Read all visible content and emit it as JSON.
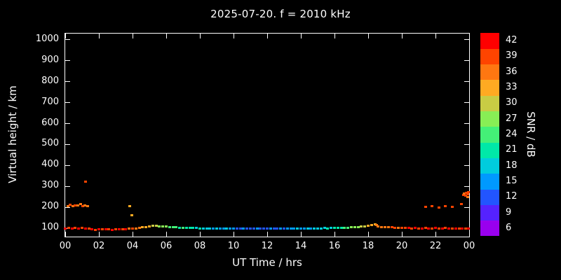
{
  "title": "2025-07-20. f = 2010 kHz",
  "colors": {
    "background": "#000000",
    "foreground": "#ffffff"
  },
  "axes": {
    "xlabel": "UT Time / hrs",
    "ylabel": "Virtual height / km",
    "x_ticks": [
      {
        "v": 0,
        "label": "00"
      },
      {
        "v": 2,
        "label": "02"
      },
      {
        "v": 4,
        "label": "04"
      },
      {
        "v": 6,
        "label": "06"
      },
      {
        "v": 8,
        "label": "08"
      },
      {
        "v": 10,
        "label": "10"
      },
      {
        "v": 12,
        "label": "12"
      },
      {
        "v": 14,
        "label": "14"
      },
      {
        "v": 16,
        "label": "16"
      },
      {
        "v": 18,
        "label": "18"
      },
      {
        "v": 20,
        "label": "20"
      },
      {
        "v": 22,
        "label": "22"
      },
      {
        "v": 24,
        "label": "00"
      }
    ],
    "y_ticks": [
      {
        "v": 100,
        "label": "100"
      },
      {
        "v": 200,
        "label": "200"
      },
      {
        "v": 300,
        "label": "300"
      },
      {
        "v": 400,
        "label": "400"
      },
      {
        "v": 500,
        "label": "500"
      },
      {
        "v": 600,
        "label": "600"
      },
      {
        "v": 700,
        "label": "700"
      },
      {
        "v": 800,
        "label": "800"
      },
      {
        "v": 900,
        "label": "900"
      },
      {
        "v": 1000,
        "label": "1000"
      }
    ]
  },
  "colorbar": {
    "label": "SNR / dB",
    "min": 4.5,
    "max": 43.5,
    "ticks": [
      6,
      9,
      12,
      15,
      18,
      21,
      24,
      27,
      30,
      33,
      36,
      39,
      42
    ],
    "stops": [
      {
        "v": 6,
        "c": "#9900ee"
      },
      {
        "v": 9,
        "c": "#5522ff"
      },
      {
        "v": 12,
        "c": "#2255ff"
      },
      {
        "v": 15,
        "c": "#0099ff"
      },
      {
        "v": 18,
        "c": "#00ccdd"
      },
      {
        "v": 21,
        "c": "#00e8a8"
      },
      {
        "v": 24,
        "c": "#44f077"
      },
      {
        "v": 27,
        "c": "#88ee55"
      },
      {
        "v": 30,
        "c": "#c8cc44"
      },
      {
        "v": 33,
        "c": "#ffaa22"
      },
      {
        "v": 36,
        "c": "#ff7711"
      },
      {
        "v": 39,
        "c": "#ff4400"
      },
      {
        "v": 42,
        "c": "#ff0000"
      }
    ]
  },
  "chart_data": {
    "type": "scatter",
    "title": "2025-07-20. f = 2010 kHz",
    "xlabel": "UT Time / hrs",
    "ylabel": "Virtual height / km",
    "colorbar_label": "SNR / dB",
    "xlim": [
      0,
      24
    ],
    "ylim": [
      60,
      1030
    ],
    "grid": false,
    "legend": "colorbar-right",
    "points_format": [
      "ut_hours",
      "virtual_height_km",
      "snr_db"
    ],
    "points": [
      [
        0.0,
        100,
        42
      ],
      [
        0.2,
        102,
        39
      ],
      [
        0.4,
        100,
        42
      ],
      [
        0.6,
        101,
        39
      ],
      [
        0.8,
        100,
        42
      ],
      [
        1.0,
        102,
        39
      ],
      [
        1.2,
        100,
        42
      ],
      [
        1.4,
        98,
        39
      ],
      [
        1.6,
        95,
        42
      ],
      [
        1.8,
        93,
        39
      ],
      [
        2.0,
        95,
        42
      ],
      [
        2.2,
        96,
        39
      ],
      [
        2.4,
        94,
        42
      ],
      [
        2.6,
        95,
        39
      ],
      [
        2.8,
        93,
        42
      ],
      [
        3.0,
        95,
        39
      ],
      [
        3.2,
        94,
        42
      ],
      [
        3.4,
        96,
        39
      ],
      [
        3.6,
        95,
        42
      ],
      [
        3.8,
        97,
        36
      ],
      [
        4.0,
        98,
        39
      ],
      [
        4.2,
        100,
        36
      ],
      [
        4.4,
        102,
        36
      ],
      [
        4.6,
        104,
        33
      ],
      [
        4.8,
        106,
        33
      ],
      [
        5.0,
        110,
        33
      ],
      [
        5.2,
        112,
        30
      ],
      [
        5.4,
        111,
        30
      ],
      [
        5.6,
        110,
        27
      ],
      [
        5.8,
        109,
        27
      ],
      [
        6.0,
        108,
        27
      ],
      [
        6.2,
        106,
        24
      ],
      [
        6.4,
        105,
        24
      ],
      [
        6.6,
        104,
        24
      ],
      [
        6.8,
        103,
        21
      ],
      [
        7.0,
        103,
        24
      ],
      [
        7.2,
        102,
        21
      ],
      [
        7.4,
        102,
        21
      ],
      [
        7.6,
        101,
        21
      ],
      [
        7.8,
        101,
        18
      ],
      [
        8.0,
        100,
        21
      ],
      [
        8.2,
        100,
        18
      ],
      [
        8.4,
        99,
        18
      ],
      [
        8.6,
        100,
        18
      ],
      [
        8.8,
        99,
        15
      ],
      [
        9.0,
        100,
        18
      ],
      [
        9.2,
        99,
        15
      ],
      [
        9.4,
        100,
        15
      ],
      [
        9.6,
        99,
        18
      ],
      [
        9.8,
        100,
        15
      ],
      [
        10.0,
        99,
        15
      ],
      [
        10.2,
        99,
        12
      ],
      [
        10.4,
        100,
        12
      ],
      [
        10.6,
        99,
        15
      ],
      [
        10.8,
        99,
        12
      ],
      [
        11.0,
        100,
        12
      ],
      [
        11.2,
        99,
        12
      ],
      [
        11.4,
        100,
        15
      ],
      [
        11.6,
        99,
        12
      ],
      [
        11.8,
        100,
        12
      ],
      [
        12.0,
        99,
        12
      ],
      [
        12.2,
        100,
        15
      ],
      [
        12.4,
        99,
        12
      ],
      [
        12.6,
        100,
        12
      ],
      [
        12.8,
        99,
        15
      ],
      [
        13.0,
        100,
        12
      ],
      [
        13.2,
        99,
        15
      ],
      [
        13.4,
        100,
        15
      ],
      [
        13.6,
        99,
        15
      ],
      [
        13.8,
        100,
        18
      ],
      [
        14.0,
        99,
        15
      ],
      [
        14.2,
        100,
        15
      ],
      [
        14.4,
        99,
        18
      ],
      [
        14.6,
        100,
        15
      ],
      [
        14.8,
        100,
        18
      ],
      [
        15.0,
        100,
        18
      ],
      [
        15.2,
        100,
        18
      ],
      [
        15.4,
        101,
        18
      ],
      [
        15.6,
        100,
        21
      ],
      [
        15.8,
        101,
        18
      ],
      [
        16.0,
        101,
        21
      ],
      [
        16.2,
        102,
        21
      ],
      [
        16.4,
        102,
        21
      ],
      [
        16.6,
        103,
        24
      ],
      [
        16.8,
        103,
        24
      ],
      [
        17.0,
        104,
        27
      ],
      [
        17.2,
        105,
        27
      ],
      [
        17.4,
        106,
        27
      ],
      [
        17.6,
        107,
        30
      ],
      [
        17.8,
        110,
        30
      ],
      [
        18.0,
        113,
        33
      ],
      [
        18.2,
        116,
        33
      ],
      [
        18.4,
        118,
        33
      ],
      [
        18.5,
        115,
        36
      ],
      [
        18.6,
        110,
        36
      ],
      [
        18.8,
        106,
        36
      ],
      [
        19.0,
        105,
        36
      ],
      [
        19.2,
        104,
        36
      ],
      [
        19.4,
        104,
        39
      ],
      [
        19.6,
        103,
        39
      ],
      [
        19.8,
        103,
        36
      ],
      [
        20.0,
        102,
        39
      ],
      [
        20.2,
        102,
        39
      ],
      [
        20.4,
        101,
        42
      ],
      [
        20.6,
        100,
        39
      ],
      [
        20.8,
        101,
        42
      ],
      [
        21.0,
        100,
        39
      ],
      [
        21.2,
        100,
        42
      ],
      [
        21.4,
        101,
        39
      ],
      [
        21.6,
        100,
        42
      ],
      [
        21.8,
        100,
        39
      ],
      [
        22.0,
        101,
        42
      ],
      [
        22.2,
        100,
        39
      ],
      [
        22.4,
        100,
        42
      ],
      [
        22.6,
        101,
        39
      ],
      [
        22.8,
        100,
        42
      ],
      [
        23.0,
        100,
        39
      ],
      [
        23.2,
        99,
        42
      ],
      [
        23.4,
        100,
        39
      ],
      [
        23.6,
        99,
        42
      ],
      [
        23.8,
        100,
        39
      ],
      [
        23.95,
        100,
        42
      ],
      [
        0.15,
        205,
        36
      ],
      [
        0.3,
        212,
        39
      ],
      [
        0.45,
        206,
        36
      ],
      [
        0.6,
        210,
        39
      ],
      [
        0.75,
        208,
        36
      ],
      [
        0.9,
        214,
        36
      ],
      [
        1.05,
        206,
        39
      ],
      [
        1.15,
        210,
        36
      ],
      [
        1.2,
        322,
        39
      ],
      [
        1.35,
        207,
        36
      ],
      [
        3.85,
        207,
        33
      ],
      [
        3.95,
        163,
        33
      ],
      [
        21.4,
        202,
        39
      ],
      [
        21.8,
        205,
        39
      ],
      [
        22.2,
        200,
        39
      ],
      [
        22.6,
        204,
        39
      ],
      [
        23.0,
        201,
        39
      ],
      [
        23.55,
        216,
        39
      ],
      [
        23.65,
        258,
        39
      ],
      [
        23.7,
        266,
        36
      ],
      [
        23.8,
        255,
        39
      ],
      [
        23.85,
        268,
        39
      ],
      [
        23.9,
        248,
        36
      ],
      [
        23.9,
        262,
        39
      ],
      [
        23.95,
        272,
        39
      ]
    ]
  }
}
